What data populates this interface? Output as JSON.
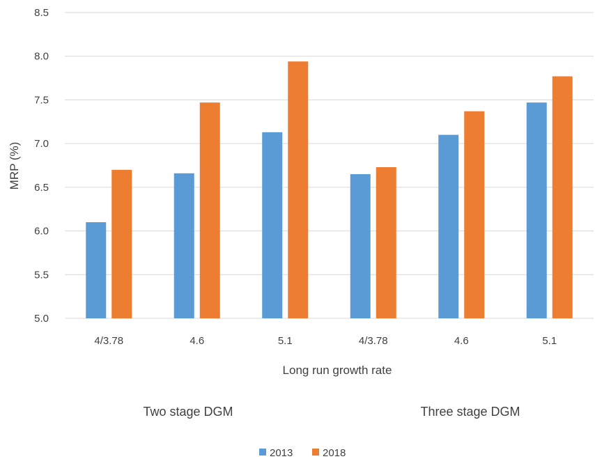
{
  "chart_data": {
    "type": "bar",
    "categories": [
      "4/3.78",
      "4.6",
      "5.1",
      "4/3.78",
      "4.6",
      "5.1"
    ],
    "groups": [
      {
        "label": "Two stage DGM",
        "categories": [
          "4/3.78",
          "4.6",
          "5.1"
        ]
      },
      {
        "label": "Three stage DGM",
        "categories": [
          "4/3.78",
          "4.6",
          "5.1"
        ]
      }
    ],
    "series": [
      {
        "name": "2013",
        "color": "#5b9bd5",
        "values": [
          6.1,
          6.66,
          7.13,
          6.65,
          7.1,
          7.47
        ]
      },
      {
        "name": "2018",
        "color": "#ed7d31",
        "values": [
          6.7,
          7.47,
          7.94,
          6.73,
          7.37,
          7.77
        ]
      }
    ],
    "ylabel": "MRP (%)",
    "xlabel": "Long run growth rate",
    "ylim": [
      5.0,
      8.5
    ],
    "yticks": [
      "5.0",
      "5.5",
      "6.0",
      "6.5",
      "7.0",
      "7.5",
      "8.0",
      "8.5"
    ],
    "grid": true,
    "gridline_color": "#d9d9d9",
    "legend_position": "bottom"
  }
}
